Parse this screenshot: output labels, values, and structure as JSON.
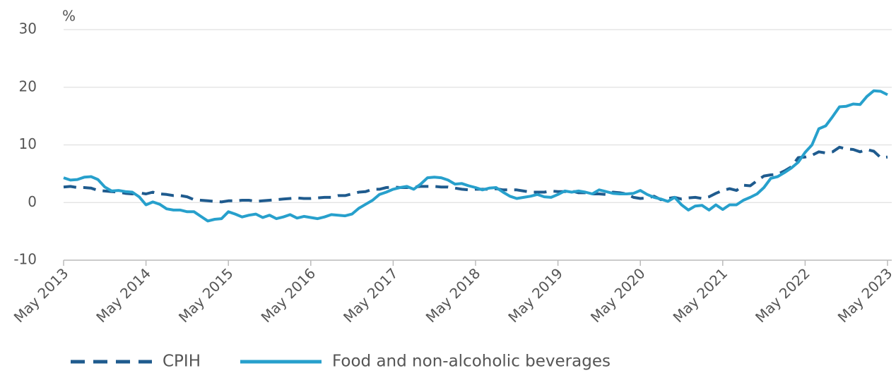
{
  "chart_data": {
    "type": "line",
    "y_unit_label": "%",
    "categories": [
      "May 2013",
      null,
      null,
      null,
      null,
      null,
      null,
      null,
      null,
      null,
      null,
      null,
      "May 2014",
      null,
      null,
      null,
      null,
      null,
      null,
      null,
      null,
      null,
      null,
      null,
      "May 2015",
      null,
      null,
      null,
      null,
      null,
      null,
      null,
      null,
      null,
      null,
      null,
      "May 2016",
      null,
      null,
      null,
      null,
      null,
      null,
      null,
      null,
      null,
      null,
      null,
      "May 2017",
      null,
      null,
      null,
      null,
      null,
      null,
      null,
      null,
      null,
      null,
      null,
      "May 2018",
      null,
      null,
      null,
      null,
      null,
      null,
      null,
      null,
      null,
      null,
      null,
      "May 2019",
      null,
      null,
      null,
      null,
      null,
      null,
      null,
      null,
      null,
      null,
      null,
      "May 2020",
      null,
      null,
      null,
      null,
      null,
      null,
      null,
      null,
      null,
      null,
      null,
      "May 2021",
      null,
      null,
      null,
      null,
      null,
      null,
      null,
      null,
      null,
      null,
      null,
      "May 2022",
      null,
      null,
      null,
      null,
      null,
      null,
      null,
      null,
      null,
      null,
      null,
      "May 2023"
    ],
    "series": [
      {
        "name": "CPIH",
        "color": "#1f5b8e",
        "dashed": true,
        "values": [
          2.7,
          2.8,
          2.6,
          2.6,
          2.5,
          2.1,
          2.0,
          1.9,
          1.8,
          1.6,
          1.5,
          1.7,
          1.5,
          1.8,
          1.5,
          1.4,
          1.2,
          1.2,
          1.0,
          0.5,
          0.4,
          0.3,
          0.2,
          0.1,
          0.3,
          0.3,
          0.4,
          0.4,
          0.2,
          0.3,
          0.4,
          0.5,
          0.6,
          0.7,
          0.8,
          0.7,
          0.7,
          0.8,
          0.9,
          0.9,
          1.2,
          1.2,
          1.5,
          1.8,
          1.9,
          2.3,
          2.3,
          2.6,
          2.7,
          2.6,
          2.6,
          2.7,
          2.8,
          2.8,
          2.8,
          2.7,
          2.7,
          2.5,
          2.3,
          2.2,
          2.3,
          2.3,
          2.3,
          2.4,
          2.2,
          2.2,
          2.2,
          2.0,
          1.8,
          1.8,
          1.8,
          2.0,
          1.9,
          1.9,
          2.0,
          1.7,
          1.7,
          1.5,
          1.5,
          1.4,
          1.8,
          1.7,
          1.5,
          0.9,
          0.7,
          0.8,
          1.1,
          0.5,
          0.7,
          0.9,
          0.6,
          0.8,
          0.9,
          0.7,
          1.0,
          1.6,
          2.1,
          2.4,
          2.1,
          3.0,
          2.9,
          3.8,
          4.6,
          4.8,
          4.9,
          5.5,
          6.2,
          7.8,
          7.9,
          8.2,
          8.8,
          8.6,
          8.8,
          9.6,
          9.3,
          9.2,
          8.8,
          9.2,
          8.9,
          7.8,
          7.9
        ]
      },
      {
        "name": "Food and non-alcoholic beverages",
        "color": "#27a0cc",
        "dashed": false,
        "values": [
          4.3,
          3.9,
          4.0,
          4.4,
          4.5,
          4.0,
          2.7,
          2.0,
          2.1,
          1.9,
          1.8,
          1.0,
          -0.4,
          0.1,
          -0.3,
          -1.1,
          -1.3,
          -1.3,
          -1.6,
          -1.6,
          -2.4,
          -3.2,
          -2.9,
          -2.8,
          -1.6,
          -2.0,
          -2.5,
          -2.2,
          -2.0,
          -2.6,
          -2.2,
          -2.8,
          -2.5,
          -2.1,
          -2.7,
          -2.4,
          -2.6,
          -2.8,
          -2.5,
          -2.1,
          -2.2,
          -2.3,
          -2.0,
          -1.0,
          -0.3,
          0.4,
          1.4,
          1.8,
          2.3,
          2.6,
          2.8,
          2.3,
          3.2,
          4.3,
          4.4,
          4.3,
          3.9,
          3.2,
          3.3,
          2.9,
          2.6,
          2.2,
          2.5,
          2.6,
          1.8,
          1.1,
          0.7,
          0.9,
          1.1,
          1.4,
          1.0,
          0.9,
          1.4,
          2.0,
          1.8,
          2.0,
          1.8,
          1.5,
          2.2,
          1.9,
          1.6,
          1.5,
          1.5,
          1.6,
          2.1,
          1.4,
          0.9,
          0.6,
          0.2,
          0.9,
          -0.4,
          -1.3,
          -0.6,
          -0.5,
          -1.3,
          -0.4,
          -1.2,
          -0.4,
          -0.4,
          0.4,
          0.9,
          1.5,
          2.6,
          4.2,
          4.5,
          5.2,
          6.0,
          7.0,
          8.7,
          10.0,
          12.8,
          13.3,
          14.9,
          16.6,
          16.7,
          17.1,
          17.0,
          18.4,
          19.4,
          19.3,
          18.7
        ]
      }
    ],
    "ylim": [
      -10,
      30
    ],
    "yticks": [
      -10,
      0,
      10,
      20,
      30
    ],
    "grid": true,
    "legend": "bottom"
  }
}
